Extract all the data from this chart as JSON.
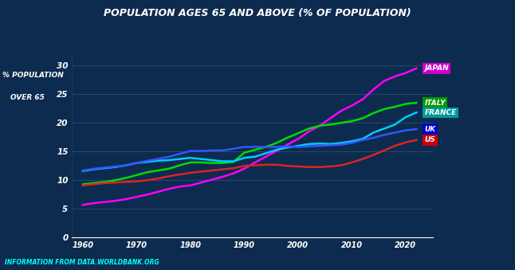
{
  "title": "POPULATION AGES 65 AND ABOVE (% OF POPULATION)",
  "source": "INFORMATION FROM DATA.WORLDBANK.ORG",
  "background_color": "#0d2b4e",
  "ylim": [
    0,
    32
  ],
  "yticks": [
    0,
    5,
    10,
    15,
    20,
    25,
    30
  ],
  "xlim": [
    1958,
    2025
  ],
  "xticks": [
    1960,
    1970,
    1980,
    1990,
    2000,
    2010,
    2020
  ],
  "series": {
    "JAPAN": {
      "color": "#ff00ff",
      "label_bg": "#cc00cc",
      "data_years": [
        1960,
        1962,
        1964,
        1966,
        1968,
        1970,
        1972,
        1974,
        1976,
        1978,
        1980,
        1982,
        1984,
        1986,
        1988,
        1990,
        1992,
        1994,
        1996,
        1998,
        2000,
        2002,
        2004,
        2006,
        2008,
        2010,
        2012,
        2014,
        2016,
        2018,
        2020,
        2022
      ],
      "data_vals": [
        5.7,
        6.0,
        6.2,
        6.4,
        6.7,
        7.1,
        7.5,
        8.0,
        8.5,
        8.9,
        9.1,
        9.6,
        10.1,
        10.6,
        11.2,
        12.0,
        13.1,
        14.1,
        15.1,
        16.2,
        17.2,
        18.5,
        19.5,
        20.8,
        22.1,
        23.0,
        24.1,
        25.8,
        27.3,
        28.1,
        28.7,
        29.5
      ]
    },
    "ITALY": {
      "color": "#00dd00",
      "label_bg": "#009900",
      "data_years": [
        1960,
        1962,
        1964,
        1966,
        1968,
        1970,
        1972,
        1974,
        1976,
        1978,
        1980,
        1982,
        1984,
        1986,
        1988,
        1990,
        1992,
        1994,
        1996,
        1998,
        2000,
        2002,
        2004,
        2006,
        2008,
        2010,
        2012,
        2014,
        2016,
        2018,
        2020,
        2022
      ],
      "data_vals": [
        9.3,
        9.5,
        9.7,
        10.0,
        10.4,
        10.9,
        11.4,
        11.7,
        12.0,
        12.6,
        13.1,
        13.1,
        13.0,
        13.0,
        13.2,
        14.8,
        15.3,
        15.8,
        16.5,
        17.4,
        18.2,
        19.0,
        19.5,
        19.7,
        20.0,
        20.3,
        20.8,
        21.7,
        22.4,
        22.8,
        23.3,
        23.5
      ]
    },
    "FRANCE": {
      "color": "#00ccff",
      "label_bg": "#009999",
      "data_years": [
        1960,
        1962,
        1964,
        1966,
        1968,
        1970,
        1972,
        1974,
        1976,
        1978,
        1980,
        1982,
        1984,
        1986,
        1988,
        1990,
        1992,
        1994,
        1996,
        1998,
        2000,
        2002,
        2004,
        2006,
        2008,
        2010,
        2012,
        2014,
        2016,
        2018,
        2020,
        2022
      ],
      "data_vals": [
        11.6,
        11.9,
        12.1,
        12.3,
        12.6,
        13.0,
        13.2,
        13.4,
        13.5,
        13.7,
        13.9,
        13.7,
        13.5,
        13.3,
        13.3,
        13.9,
        14.1,
        14.7,
        15.3,
        15.7,
        16.0,
        16.3,
        16.4,
        16.3,
        16.5,
        16.8,
        17.2,
        18.3,
        19.0,
        19.7,
        21.0,
        21.8
      ]
    },
    "UK": {
      "color": "#3355ff",
      "label_bg": "#0000cc",
      "data_years": [
        1960,
        1962,
        1964,
        1966,
        1968,
        1970,
        1972,
        1974,
        1976,
        1978,
        1980,
        1982,
        1984,
        1986,
        1988,
        1990,
        1992,
        1994,
        1996,
        1998,
        2000,
        2002,
        2004,
        2006,
        2008,
        2010,
        2012,
        2014,
        2016,
        2018,
        2020,
        2022
      ],
      "data_vals": [
        11.7,
        12.0,
        12.2,
        12.4,
        12.6,
        13.0,
        13.4,
        13.7,
        14.1,
        14.6,
        15.1,
        15.1,
        15.2,
        15.2,
        15.5,
        15.8,
        15.8,
        15.8,
        15.8,
        15.9,
        15.8,
        15.9,
        16.0,
        16.1,
        16.2,
        16.5,
        17.0,
        17.4,
        17.9,
        18.3,
        18.7,
        18.9
      ]
    },
    "US": {
      "color": "#dd2222",
      "label_bg": "#cc0000",
      "data_years": [
        1960,
        1962,
        1964,
        1966,
        1968,
        1970,
        1972,
        1974,
        1976,
        1978,
        1980,
        1982,
        1984,
        1986,
        1988,
        1990,
        1992,
        1994,
        1996,
        1998,
        2000,
        2002,
        2004,
        2006,
        2008,
        2010,
        2012,
        2014,
        2016,
        2018,
        2020,
        2022
      ],
      "data_vals": [
        9.1,
        9.3,
        9.5,
        9.6,
        9.7,
        9.8,
        10.0,
        10.3,
        10.7,
        11.0,
        11.3,
        11.5,
        11.7,
        11.9,
        12.1,
        12.5,
        12.6,
        12.7,
        12.7,
        12.5,
        12.4,
        12.3,
        12.3,
        12.4,
        12.6,
        13.1,
        13.7,
        14.4,
        15.2,
        16.0,
        16.6,
        17.0
      ]
    }
  }
}
